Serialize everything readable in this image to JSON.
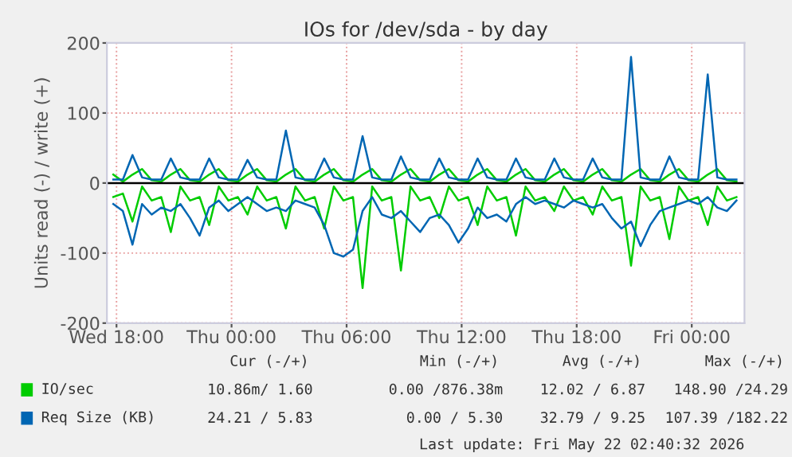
{
  "chart_data": {
    "type": "line",
    "title": "IOs for /dev/sda - by day",
    "ylabel": "Units read (-) / write (+)",
    "x": [
      "2026-05-20T17:50",
      "2026-05-20T18:20",
      "2026-05-20T18:50",
      "2026-05-20T19:20",
      "2026-05-20T19:50",
      "2026-05-20T20:20",
      "2026-05-20T20:50",
      "2026-05-20T21:20",
      "2026-05-20T21:50",
      "2026-05-20T22:20",
      "2026-05-20T22:50",
      "2026-05-20T23:20",
      "2026-05-20T23:50",
      "2026-05-21T00:20",
      "2026-05-21T00:50",
      "2026-05-21T01:20",
      "2026-05-21T01:50",
      "2026-05-21T02:20",
      "2026-05-21T02:50",
      "2026-05-21T03:20",
      "2026-05-21T03:50",
      "2026-05-21T04:20",
      "2026-05-21T04:50",
      "2026-05-21T05:20",
      "2026-05-21T05:50",
      "2026-05-21T06:20",
      "2026-05-21T06:50",
      "2026-05-21T07:20",
      "2026-05-21T07:50",
      "2026-05-21T08:20",
      "2026-05-21T08:50",
      "2026-05-21T09:20",
      "2026-05-21T09:50",
      "2026-05-21T10:20",
      "2026-05-21T10:50",
      "2026-05-21T11:20",
      "2026-05-21T11:50",
      "2026-05-21T12:20",
      "2026-05-21T12:50",
      "2026-05-21T13:20",
      "2026-05-21T13:50",
      "2026-05-21T14:20",
      "2026-05-21T14:50",
      "2026-05-21T15:20",
      "2026-05-21T15:50",
      "2026-05-21T16:20",
      "2026-05-21T16:50",
      "2026-05-21T17:20",
      "2026-05-21T17:50",
      "2026-05-21T18:20",
      "2026-05-21T18:50",
      "2026-05-21T19:20",
      "2026-05-21T19:50",
      "2026-05-21T20:20",
      "2026-05-21T20:50",
      "2026-05-21T21:20",
      "2026-05-21T21:50",
      "2026-05-21T22:20",
      "2026-05-21T22:50",
      "2026-05-21T23:20",
      "2026-05-21T23:50",
      "2026-05-22T00:20",
      "2026-05-22T00:50",
      "2026-05-22T01:20",
      "2026-05-22T01:50",
      "2026-05-22T02:20"
    ],
    "series": [
      {
        "name": "IO/sec",
        "color": "#00cc00",
        "values": [
          -20,
          -15,
          -55,
          -5,
          -25,
          -20,
          -70,
          -5,
          -25,
          -20,
          -60,
          -5,
          -25,
          -20,
          -45,
          -5,
          -25,
          -20,
          -65,
          -5,
          -25,
          -20,
          -65,
          -5,
          -25,
          -20,
          -150,
          -5,
          -25,
          -20,
          -125,
          -5,
          -25,
          -20,
          -50,
          -5,
          -25,
          -20,
          -60,
          -5,
          -25,
          -20,
          -75,
          -5,
          -25,
          -20,
          -40,
          -5,
          -25,
          -20,
          -45,
          -5,
          -25,
          -20,
          -118,
          -5,
          -25,
          -20,
          -80,
          -5,
          -25,
          -20,
          -60,
          -5,
          -25,
          -20
        ]
      },
      {
        "color": "#00cc00",
        "values": [
          12,
          2,
          12,
          20,
          4,
          2,
          12,
          20,
          4,
          2,
          12,
          20,
          4,
          2,
          12,
          20,
          4,
          2,
          12,
          20,
          4,
          2,
          12,
          20,
          4,
          2,
          12,
          20,
          4,
          2,
          12,
          20,
          4,
          2,
          12,
          20,
          4,
          2,
          12,
          20,
          4,
          2,
          12,
          20,
          4,
          2,
          12,
          20,
          4,
          2,
          12,
          20,
          4,
          2,
          12,
          20,
          4,
          2,
          12,
          20,
          4,
          2,
          12,
          20,
          4,
          2
        ]
      },
      {
        "name": "Req Size (KB)",
        "color": "#0066b3",
        "values": [
          -30,
          -40,
          -88,
          -30,
          -45,
          -35,
          -40,
          -30,
          -50,
          -75,
          -35,
          -25,
          -40,
          -30,
          -20,
          -30,
          -40,
          -35,
          -40,
          -25,
          -30,
          -35,
          -60,
          -100,
          -105,
          -95,
          -40,
          -20,
          -45,
          -50,
          -40,
          -55,
          -70,
          -50,
          -45,
          -60,
          -85,
          -65,
          -35,
          -50,
          -45,
          -55,
          -30,
          -20,
          -30,
          -25,
          -30,
          -35,
          -25,
          -30,
          -35,
          -30,
          -50,
          -65,
          -55,
          -90,
          -60,
          -40,
          -35,
          -30,
          -25,
          -30,
          -20,
          -35,
          -40,
          -25
        ]
      },
      {
        "color": "#0066b3",
        "values": [
          5,
          5,
          40,
          8,
          5,
          5,
          35,
          8,
          5,
          5,
          35,
          8,
          5,
          5,
          33,
          8,
          5,
          5,
          75,
          8,
          5,
          5,
          35,
          8,
          5,
          5,
          67,
          8,
          5,
          5,
          38,
          8,
          5,
          5,
          35,
          8,
          5,
          5,
          35,
          8,
          5,
          5,
          35,
          8,
          5,
          5,
          35,
          8,
          5,
          5,
          35,
          8,
          5,
          5,
          180,
          8,
          5,
          5,
          38,
          8,
          5,
          5,
          155,
          8,
          5,
          5
        ]
      }
    ],
    "xlim": [
      "2026-05-20T17:30",
      "2026-05-22T02:45"
    ],
    "xticks": [
      {
        "value": "2026-05-20T18:00",
        "label": "Wed 18:00"
      },
      {
        "value": "2026-05-21T00:00",
        "label": "Thu 00:00"
      },
      {
        "value": "2026-05-21T06:00",
        "label": "Thu 06:00"
      },
      {
        "value": "2026-05-21T12:00",
        "label": "Thu 12:00"
      },
      {
        "value": "2026-05-21T18:00",
        "label": "Thu 18:00"
      },
      {
        "value": "2026-05-22T00:00",
        "label": "Fri 00:00"
      }
    ],
    "ylim": [
      -200,
      200
    ],
    "yticks": [
      -200,
      -100,
      0,
      100,
      200
    ],
    "ref_lines": [
      {
        "axis": "y",
        "value": 0,
        "color": "#000000"
      }
    ],
    "grid": true,
    "legend": "bottom",
    "marker": "none",
    "line_style": "solid",
    "annotations": [
      "Cur (-/+)",
      "Min (-/+)",
      "Avg (-/+)",
      "Max (-/+)",
      "10.86m/ 1.60",
      "0.00 /876.38m",
      "12.02 / 6.87",
      "148.90 /24.29",
      "24.21 / 5.83",
      "0.00 / 5.30",
      "32.79 / 9.25",
      "107.39 /182.22",
      "Last update: Fri May 22 02:40:32 2026"
    ]
  }
}
